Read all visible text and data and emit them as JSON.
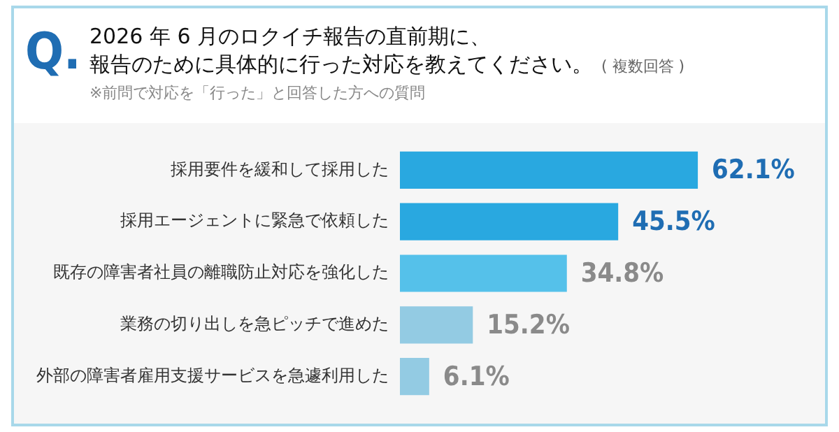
{
  "chart_data": {
    "type": "bar",
    "orientation": "horizontal",
    "title": "2026 年 6 月のロクイチ報告の直前期に、報告のために具体的に行った対応を教えてください。",
    "subtitle": "( 複数回答 )",
    "annotations": [
      "Q.",
      "※前問で対応を「行った」と回答した方への質問"
    ],
    "categories": [
      "採用要件を緩和して採用した",
      "採用エージェントに緊急で依頼した",
      "既存の障害者社員の離職防止対応を強化した",
      "業務の切り出しを急ピッチで進めた",
      "外部の障害者雇用支援サービスを急遽利用した"
    ],
    "values": [
      62.1,
      45.5,
      34.8,
      15.2,
      6.1
    ],
    "colors": [
      "#29a8e0",
      "#29a8e0",
      "#55c1ea",
      "#93cbe3",
      "#93cbe3"
    ],
    "value_labels": [
      "62.1%",
      "45.5%",
      "34.8%",
      "15.2%",
      "6.1%"
    ],
    "grid": false,
    "legend": false
  }
}
